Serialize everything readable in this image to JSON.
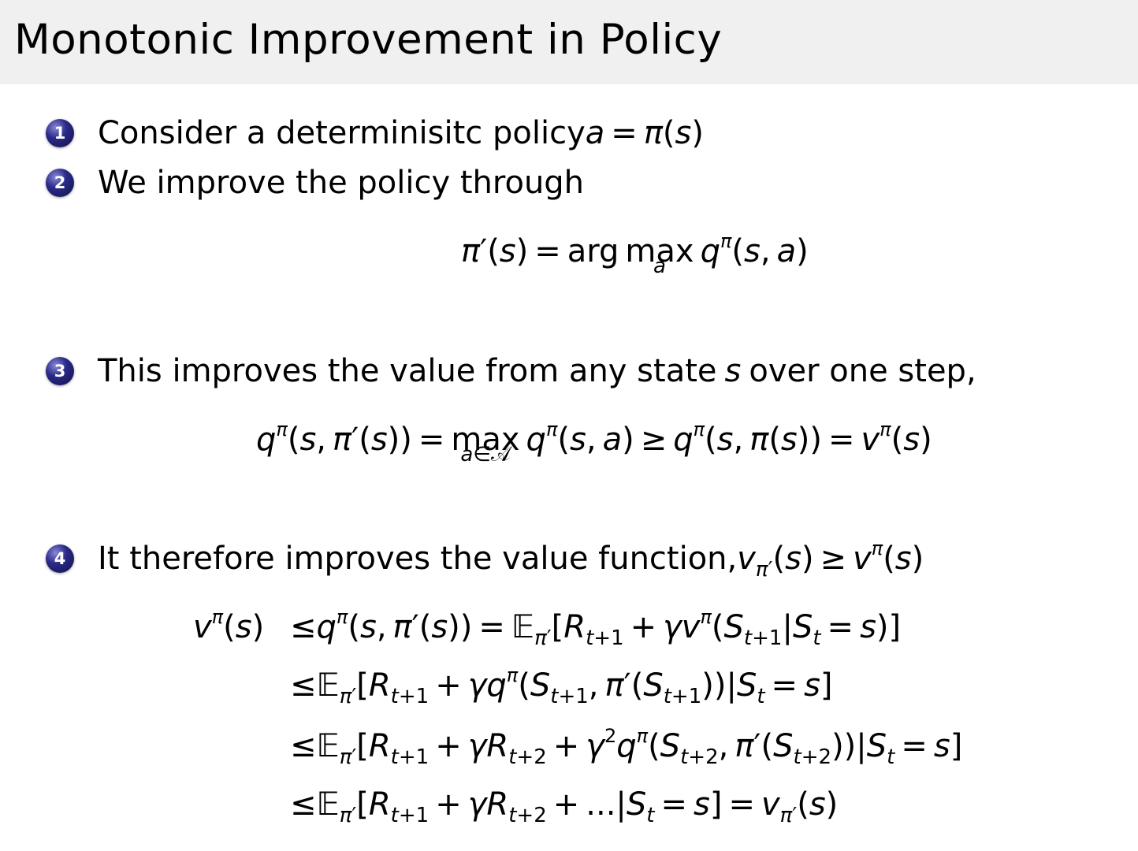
{
  "slide": {
    "title": "Monotonic Improvement in Policy",
    "bullet_color": "#2a2a88",
    "items": [
      {
        "number": "1",
        "text": "Consider a determinisitc policy ",
        "math": "a = π(s)"
      },
      {
        "number": "2",
        "text": "We improve the policy through",
        "math": ""
      },
      {
        "number": "3",
        "text": "This improves the value from any state ",
        "math": "s",
        "text_after": " over one step,"
      },
      {
        "number": "4",
        "text": "It therefore improves the value function, ",
        "math": "v_{π′}(s) ≥ v^{π}(s)"
      }
    ],
    "equations": {
      "policy_update": "π′(s) = \\up{arg} \\lim{max}{a} q^{π}(s, a)",
      "one_step": "q^{π}(s, π′(s)) = \\lim{max}{a∈𝒜} q^{π}(s, a) ≥ q^{π}(s, π(s)) = v^{π}(s)",
      "chain_lhs": "v^{π}(s) ",
      "chain": [
        "≤q^{π}(s, π′(s)) = 𝔼_{π′}[R_{t+1} + γv^{π}(S_{t+1}|S_{t} = s)]",
        "≤𝔼_{π′}[R_{t+1} + γq^{π}(S_{t+1}, π′(S_{t+1}))|S_{t} = s]",
        "≤𝔼_{π′}[R_{t+1} + γR_{t+2} + γ^{2}q^{π}(S_{t+2}, π′(S_{t+2}))|S_{t} = s]",
        "≤𝔼_{π′}[R_{t+1} + γR_{t+2} + ...|S_{t} = s] = v_{π′}(s)"
      ]
    }
  }
}
